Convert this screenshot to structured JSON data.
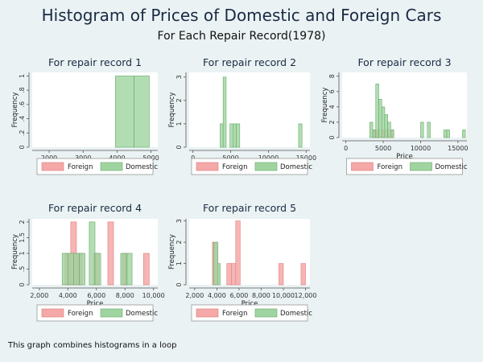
{
  "title": "Histogram of Prices of Domestic and Foreign Cars",
  "subtitle": "For Each Repair Record(1978)",
  "note": "This graph combines histograms in a loop",
  "colors": {
    "background": "#eaf2f3",
    "plot_region": "#ffffff",
    "foreign": "#f4a8a8",
    "foreign_edge": "#e07a7a",
    "domestic": "#9fd4a0",
    "domestic_edge": "#66aa68"
  },
  "chart_data": [
    {
      "type": "bar",
      "title": "For repair record 1",
      "xlabel": "",
      "ylabel": "Frequency",
      "xlim": [
        1500,
        5200
      ],
      "ylim": [
        0,
        1.05
      ],
      "xticks": [
        "2000",
        "3000",
        "4000",
        "5000"
      ],
      "xtick_values": [
        2000,
        3000,
        4000,
        5000
      ],
      "yticks": [
        "0",
        ".2",
        ".4",
        ".6",
        ".8",
        "1"
      ],
      "ytick_values": [
        0,
        0.2,
        0.4,
        0.6,
        0.8,
        1
      ],
      "legend": [
        "Foreign",
        "Domestic"
      ],
      "series": [
        {
          "name": "Foreign",
          "bins": []
        },
        {
          "name": "Domestic",
          "bins": [
            [
              3950,
              4500,
              1
            ],
            [
              4500,
              4950,
              1
            ]
          ]
        }
      ]
    },
    {
      "type": "bar",
      "title": "For repair record 2",
      "xlabel": "",
      "ylabel": "Frequency",
      "xlim": [
        -500,
        15500
      ],
      "ylim": [
        0,
        3.2
      ],
      "xticks": [
        "0",
        "5000",
        "10000",
        "15000"
      ],
      "xtick_values": [
        0,
        5000,
        10000,
        15000
      ],
      "yticks": [
        "0",
        "1",
        "2",
        "3"
      ],
      "ytick_values": [
        0,
        1,
        2,
        3
      ],
      "legend": [
        "Foreign",
        "Domestic"
      ],
      "series": [
        {
          "name": "Foreign",
          "bins": []
        },
        {
          "name": "Domestic",
          "bins": [
            [
              3600,
              4000,
              1
            ],
            [
              4000,
              4400,
              3
            ],
            [
              4900,
              5350,
              1
            ],
            [
              5350,
              5750,
              1
            ],
            [
              5750,
              6200,
              1
            ],
            [
              14000,
              14450,
              1
            ]
          ]
        }
      ]
    },
    {
      "type": "bar",
      "title": "For repair record 3",
      "xlabel": "Price",
      "ylabel": "Frequency",
      "xlim": [
        -500,
        16200
      ],
      "ylim": [
        0,
        8.5
      ],
      "xticks": [
        "0",
        "5000",
        "10000",
        "15000"
      ],
      "xtick_values": [
        0,
        5000,
        10000,
        15000
      ],
      "yticks": [
        "0",
        "2",
        "4",
        "6",
        "8"
      ],
      "ytick_values": [
        0,
        2,
        4,
        6,
        8
      ],
      "legend": [
        "Foreign",
        "Domestic"
      ],
      "series": [
        {
          "name": "Foreign",
          "bins": [
            [
              3700,
              4100,
              1
            ],
            [
              4100,
              4500,
              1
            ],
            [
              4800,
              5200,
              1
            ],
            [
              5400,
              5800,
              1
            ],
            [
              6000,
              6400,
              1
            ]
          ]
        },
        {
          "name": "Domestic",
          "bins": [
            [
              3200,
              3600,
              2
            ],
            [
              3600,
              4000,
              1
            ],
            [
              4000,
              4400,
              7
            ],
            [
              4400,
              4800,
              5
            ],
            [
              4800,
              5200,
              4
            ],
            [
              5200,
              5600,
              3
            ],
            [
              5600,
              6000,
              2
            ],
            [
              6000,
              6400,
              1
            ],
            [
              10000,
              10400,
              2
            ],
            [
              10900,
              11300,
              2
            ],
            [
              13100,
              13500,
              1
            ],
            [
              13500,
              13900,
              1
            ],
            [
              15600,
              16000,
              1
            ]
          ]
        }
      ]
    },
    {
      "type": "bar",
      "title": "For repair record 4",
      "xlabel": "Price",
      "ylabel": "Frequency",
      "xlim": [
        1500,
        10300
      ],
      "ylim": [
        0,
        2.1
      ],
      "xticks": [
        "2,000",
        "4,000",
        "6,000",
        "8,000",
        "10,000"
      ],
      "xtick_values": [
        2000,
        4000,
        6000,
        8000,
        10000
      ],
      "yticks": [
        "0",
        ".5",
        "1",
        "1.5",
        "2"
      ],
      "ytick_values": [
        0,
        0.5,
        1,
        1.5,
        2
      ],
      "legend": [
        "Foreign",
        "Domestic"
      ],
      "series": [
        {
          "name": "Foreign",
          "bins": [
            [
              3800,
              4200,
              1
            ],
            [
              4200,
              4600,
              2
            ],
            [
              4600,
              5000,
              1
            ],
            [
              5800,
              6200,
              1
            ],
            [
              6800,
              7200,
              2
            ],
            [
              7800,
              8200,
              1
            ],
            [
              9300,
              9700,
              1
            ]
          ]
        },
        {
          "name": "Domestic",
          "bins": [
            [
              3600,
              4000,
              1
            ],
            [
              4000,
              4400,
              1
            ],
            [
              4400,
              4800,
              1
            ],
            [
              4800,
              5200,
              1
            ],
            [
              5500,
              5900,
              2
            ],
            [
              5900,
              6300,
              1
            ],
            [
              7700,
              8100,
              1
            ],
            [
              8100,
              8500,
              1
            ]
          ]
        }
      ]
    },
    {
      "type": "bar",
      "title": "For repair record 5",
      "xlabel": "Price",
      "ylabel": "Frequency",
      "xlim": [
        1500,
        12400
      ],
      "ylim": [
        0,
        3.1
      ],
      "xticks": [
        "2,000",
        "4,000",
        "6,000",
        "8,000",
        "10,000",
        "12,000"
      ],
      "xtick_values": [
        2000,
        4000,
        6000,
        8000,
        10000,
        12000
      ],
      "yticks": [
        "0",
        "1",
        "2",
        "3"
      ],
      "ytick_values": [
        0,
        1,
        2,
        3
      ],
      "legend": [
        "Foreign",
        "Domestic"
      ],
      "series": [
        {
          "name": "Foreign",
          "bins": [
            [
              3600,
              4000,
              2
            ],
            [
              4900,
              5300,
              1
            ],
            [
              5300,
              5700,
              1
            ],
            [
              5700,
              6100,
              3
            ],
            [
              9600,
              10000,
              1
            ],
            [
              11600,
              12000,
              1
            ]
          ]
        },
        {
          "name": "Domestic",
          "bins": [
            [
              3700,
              4100,
              2
            ],
            [
              4100,
              4300,
              1
            ]
          ]
        }
      ]
    }
  ]
}
